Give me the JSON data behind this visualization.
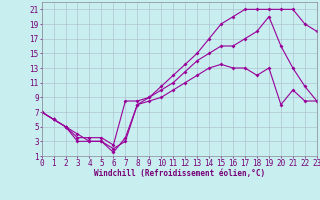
{
  "xlabel": "Windchill (Refroidissement éolien,°C)",
  "bg_color": "#c8eef0",
  "line_color": "#990099",
  "grid_color": "#aabbcc",
  "xmin": 0,
  "xmax": 23,
  "ymin": 1,
  "ymax": 22,
  "yticks": [
    1,
    3,
    5,
    7,
    9,
    11,
    13,
    15,
    17,
    19,
    21
  ],
  "xticks": [
    0,
    1,
    2,
    3,
    4,
    5,
    6,
    7,
    8,
    9,
    10,
    11,
    12,
    13,
    14,
    15,
    16,
    17,
    18,
    19,
    20,
    21,
    22,
    23
  ],
  "line1_x": [
    0,
    1,
    2,
    3,
    4,
    5,
    6,
    7,
    8,
    9,
    10,
    11,
    12,
    13,
    14,
    15,
    16,
    17,
    18,
    19,
    20,
    21,
    22,
    23
  ],
  "line1_y": [
    7,
    6,
    5,
    3,
    3,
    3,
    2,
    3,
    8,
    8.5,
    9,
    10,
    11,
    12,
    13,
    13.5,
    13,
    13,
    12,
    13,
    8,
    10,
    8.5,
    8.5
  ],
  "line2_x": [
    0,
    1,
    2,
    3,
    4,
    5,
    6,
    7,
    8,
    9,
    10,
    11,
    12,
    13,
    14,
    15,
    16,
    17,
    18,
    19,
    20,
    21,
    22,
    23
  ],
  "line2_y": [
    7,
    6,
    5,
    3.5,
    3.5,
    3.5,
    2.5,
    8.5,
    8.5,
    9,
    10,
    11,
    12.5,
    14,
    15,
    16,
    16,
    17,
    18,
    20,
    16,
    13,
    10.5,
    8.5
  ],
  "line3_x": [
    0,
    1,
    2,
    3,
    4,
    5,
    6,
    7,
    8,
    9,
    10,
    11,
    12,
    13,
    14,
    15,
    16,
    17,
    18,
    19,
    20,
    21,
    22,
    23
  ],
  "line3_y": [
    7,
    6,
    5,
    4,
    3,
    3,
    1.5,
    3.5,
    8,
    9,
    10.5,
    12,
    13.5,
    15,
    17,
    19,
    20,
    21,
    21,
    21,
    21,
    21,
    19,
    18
  ],
  "tick_color": "#770077",
  "label_fontsize": 5.5,
  "xlabel_fontsize": 5.5,
  "marker_size": 2.0,
  "line_width": 0.8
}
